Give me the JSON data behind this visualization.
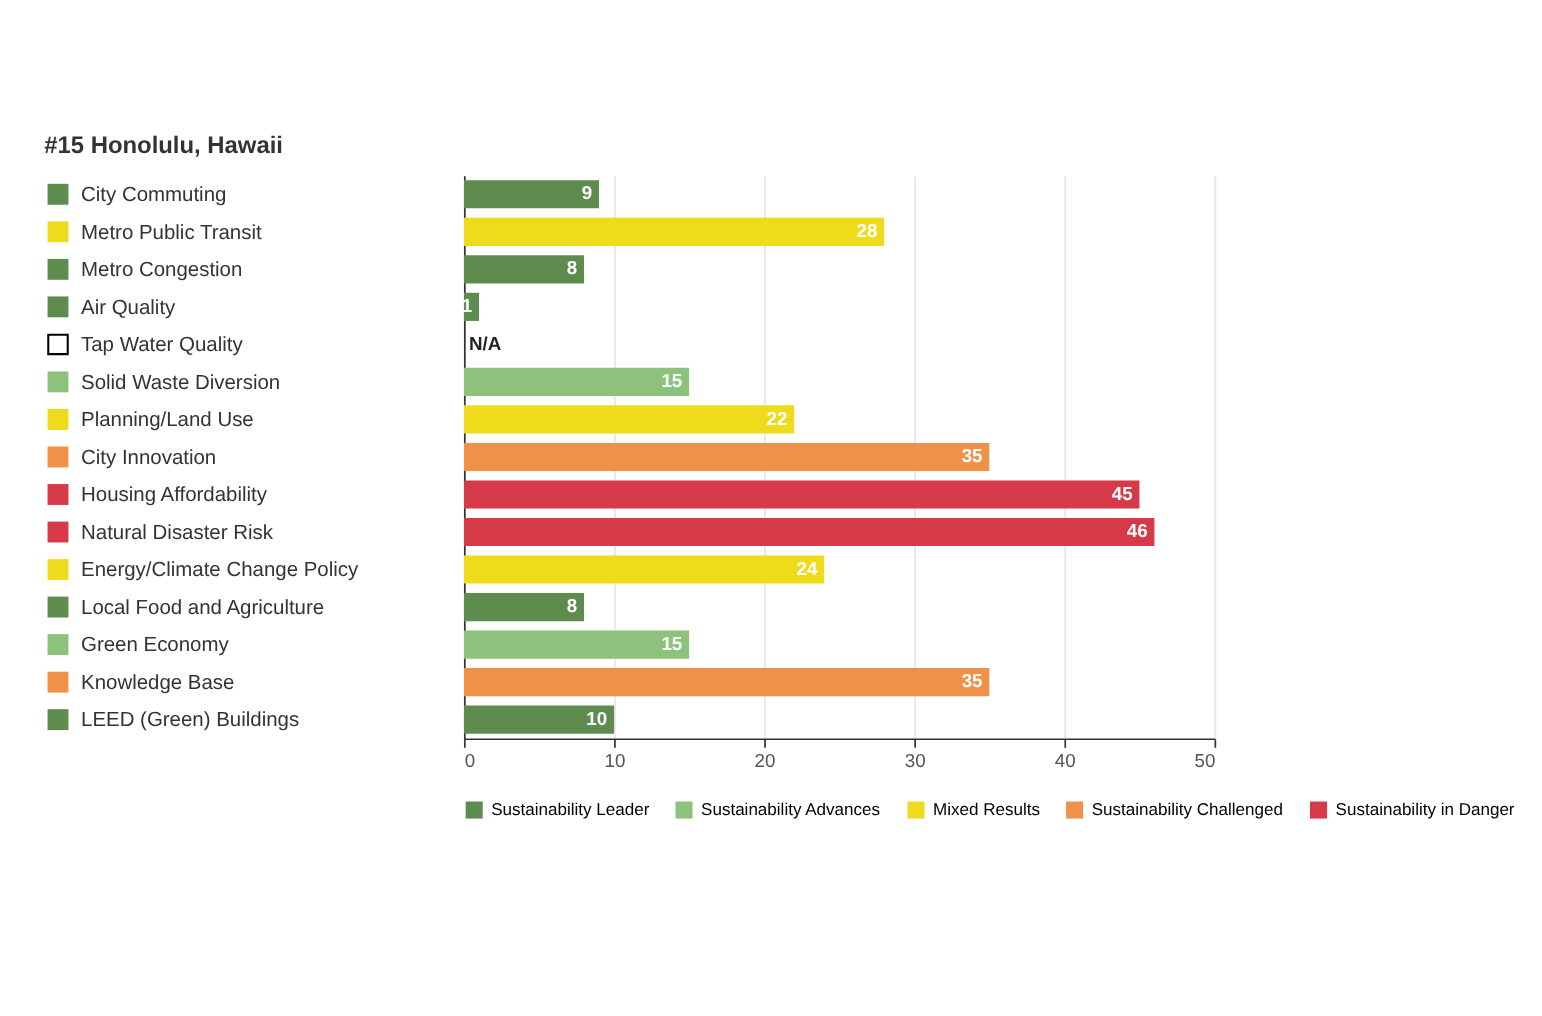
{
  "chart_data": {
    "type": "bar",
    "orientation": "horizontal",
    "title": "#15 Honolulu, Hawaii",
    "categories": [
      "City Commuting",
      "Metro Public Transit",
      "Metro Congestion",
      "Air Quality",
      "Tap Water Quality",
      "Solid Waste Diversion",
      "Planning/Land Use",
      "City Innovation",
      "Housing Affordability",
      "Natural Disaster Risk",
      "Energy/Climate Change Policy",
      "Local Food and Agriculture",
      "Green Economy",
      "Knowledge Base",
      "LEED (Green) Buildings"
    ],
    "series": [
      {
        "name": "Sustainability Leader",
        "color": "#5e8c4e",
        "values": [
          9,
          null,
          8,
          1,
          null,
          null,
          null,
          null,
          null,
          null,
          null,
          8,
          null,
          null,
          10
        ]
      },
      {
        "name": "Sustainability Advances",
        "color": "#8dc27c",
        "values": [
          null,
          null,
          null,
          null,
          null,
          15,
          null,
          null,
          null,
          null,
          null,
          null,
          15,
          null,
          null
        ]
      },
      {
        "name": "Mixed Results",
        "color": "#eedc1c",
        "values": [
          null,
          28,
          null,
          null,
          null,
          null,
          22,
          null,
          null,
          null,
          24,
          null,
          null,
          null,
          null
        ]
      },
      {
        "name": "Sustainability Challenged",
        "color": "#f0914a",
        "values": [
          null,
          null,
          null,
          null,
          null,
          null,
          null,
          35,
          null,
          null,
          null,
          null,
          null,
          35,
          null
        ]
      },
      {
        "name": "Sustainability in Danger",
        "color": "#d63a48",
        "values": [
          null,
          null,
          null,
          null,
          null,
          null,
          null,
          null,
          45,
          46,
          null,
          null,
          null,
          null,
          null
        ]
      }
    ],
    "annotations": [
      {
        "text": "N/A",
        "x": 0,
        "y": "Tap Water Quality"
      }
    ],
    "xlim": [
      0,
      50
    ],
    "xticks": [
      0,
      10,
      20,
      30,
      40,
      50
    ],
    "grid": "x",
    "legend": "bottom",
    "data_labels": true
  }
}
